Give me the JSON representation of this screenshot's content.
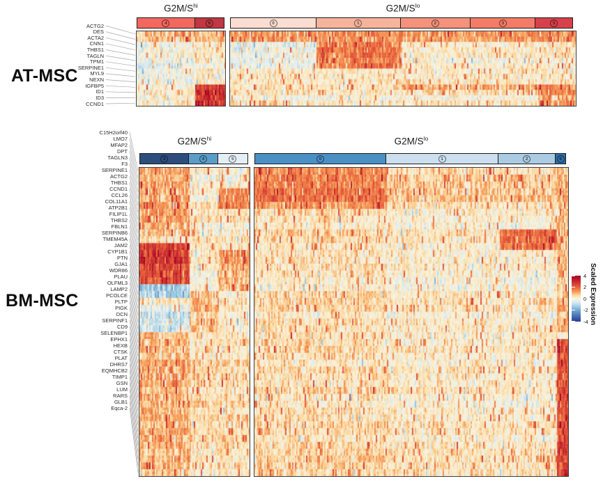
{
  "chart_data": {
    "type": "heatmap",
    "description": "Single-cell scaled expression heatmaps of equine AT-MSC and BM-MSC split by cell-cycle cluster groups",
    "legend": {
      "title": "Scaled Expression",
      "ticks": [
        "4",
        "2",
        "0",
        "-2",
        "-4"
      ],
      "range": [
        -4,
        4
      ]
    },
    "colormap": {
      "stops": [
        {
          "v": 4.0,
          "color": "#a50026"
        },
        {
          "v": 3.0,
          "color": "#c62a2e"
        },
        {
          "v": 2.0,
          "color": "#e8603c"
        },
        {
          "v": 1.2,
          "color": "#f59b58"
        },
        {
          "v": 0.6,
          "color": "#fbd9a2"
        },
        {
          "v": 0.0,
          "color": "#faf3dc"
        },
        {
          "v": -0.6,
          "color": "#dcebf0"
        },
        {
          "v": -1.2,
          "color": "#aed4e6"
        },
        {
          "v": -2.0,
          "color": "#74a9d0"
        },
        {
          "v": -3.0,
          "color": "#4575b4"
        },
        {
          "v": -4.0,
          "color": "#313695"
        }
      ]
    },
    "heatmaps": [
      {
        "name": "AT-MSC",
        "column_groups": [
          {
            "label": "G2M/S",
            "sup": "hi",
            "clusters": [
              {
                "id": "4",
                "color": "#f3685f",
                "width_frac": 0.66
              },
              {
                "id": "6",
                "color": "#c03843",
                "width_frac": 0.34
              }
            ]
          },
          {
            "label": "G2M/S",
            "sup": "lo",
            "clusters": [
              {
                "id": "0",
                "color": "#fbddd1",
                "width_frac": 0.25
              },
              {
                "id": "1",
                "color": "#f7b49d",
                "width_frac": 0.245
              },
              {
                "id": "2",
                "color": "#f5927b",
                "width_frac": 0.205
              },
              {
                "id": "3",
                "color": "#f37c68",
                "width_frac": 0.19
              },
              {
                "id": "5",
                "color": "#d6414b",
                "width_frac": 0.11
              }
            ]
          }
        ],
        "genes": [
          "ACTG2",
          "DES",
          "ACTA2",
          "CNN1",
          "THBS1",
          "TAGLN",
          "TPM1",
          "SERPINE1",
          "MYL9",
          "NEXN",
          "IGFBP5",
          "ID1",
          "ID3",
          "CCND1"
        ],
        "expression_blocks": [
          {
            "group": "lo",
            "clusters": [
              "0",
              "1",
              "2",
              "3",
              "5"
            ],
            "gene_start": "ACTG2",
            "gene_end": "DES",
            "level": 1.0
          },
          {
            "group": "hi",
            "clusters": [
              "4",
              "6"
            ],
            "gene_start": "ACTG2",
            "gene_end": "DES",
            "level": 0.7
          },
          {
            "group": "lo",
            "clusters": [
              "1"
            ],
            "gene_start": "ACTA2",
            "gene_end": "TPM1",
            "level": 1.4
          },
          {
            "group": "lo",
            "clusters": [
              "0"
            ],
            "gene_start": "ACTA2",
            "gene_end": "TPM1",
            "level": -0.5
          },
          {
            "group": "hi",
            "clusters": [
              "4"
            ],
            "gene_start": "ACTA2",
            "gene_end": "NEXN",
            "level": -0.4
          },
          {
            "group": "hi",
            "clusters": [
              "6"
            ],
            "gene_start": "IGFBP5",
            "gene_end": "CCND1",
            "level": 2.5
          },
          {
            "group": "lo",
            "clusters": [
              "5"
            ],
            "gene_start": "IGFBP5",
            "gene_end": "CCND1",
            "level": 1.1
          },
          {
            "group": "lo",
            "clusters": [
              "2",
              "3"
            ],
            "gene_start": "IGFBP5",
            "gene_end": "IGFBP5",
            "level": 0.6
          }
        ]
      },
      {
        "name": "BM-MSC",
        "column_groups": [
          {
            "label": "G2M/S",
            "sup": "hi",
            "clusters": [
              {
                "id": "3",
                "color": "#2d4d7d",
                "width_frac": 0.45
              },
              {
                "id": "4",
                "color": "#5b9dc9",
                "width_frac": 0.27
              },
              {
                "id": "5",
                "color": "#e4eef5",
                "width_frac": 0.28
              }
            ]
          },
          {
            "label": "G2M/S",
            "sup": "lo",
            "clusters": [
              {
                "id": "0",
                "color": "#4a90c5",
                "width_frac": 0.42
              },
              {
                "id": "1",
                "color": "#ccdfee",
                "width_frac": 0.36
              },
              {
                "id": "2",
                "color": "#abcbe2",
                "width_frac": 0.185
              },
              {
                "id": "6",
                "color": "#2f6ea6",
                "width_frac": 0.035
              }
            ]
          }
        ],
        "genes": [
          "C15H2orf40",
          "LMO7",
          "MFAP2",
          "DPT",
          "TAGLN3",
          "F3",
          "SERPINE1",
          "ACTG2",
          "THBS1",
          "CCND1",
          "CCL26",
          "COL11A1",
          "ATP2B1",
          "FILIP1L",
          "THBS2",
          "FBLN1",
          "SERPINB6",
          "TMEM45A",
          "JAM2",
          "CYP1B1",
          "PTN",
          "GJA1",
          "WDR86",
          "PLAU",
          "OLFML3",
          "LAMP2",
          "PCOLCE",
          "PLTP",
          "PIGK",
          "DCN",
          "SERPINF1",
          "CD9",
          "SELENBP1",
          "EPHX1",
          "HEXB",
          "CTSK",
          "PLAT",
          "DHRS7",
          "EQMHCB2",
          "TIMP1",
          "GSN",
          "LUM",
          "RARS",
          "GLB1",
          "Eqca-2"
        ],
        "expression_blocks": [
          {
            "group": "lo",
            "clusters": [
              "0"
            ],
            "gene_start": "C15H2orf40",
            "gene_end": "F3",
            "level": 1.3
          },
          {
            "group": "lo",
            "clusters": [
              "1",
              "2"
            ],
            "gene_start": "C15H2orf40",
            "gene_end": "F3",
            "level": 0.4
          },
          {
            "group": "hi",
            "clusters": [
              "3"
            ],
            "gene_start": "C15H2orf40",
            "gene_end": "CCND1",
            "level": 0.9
          },
          {
            "group": "hi",
            "clusters": [
              "5"
            ],
            "gene_start": "DPT",
            "gene_end": "F3",
            "level": 1.3
          },
          {
            "group": "hi",
            "clusters": [
              "3"
            ],
            "gene_start": "COL11A1",
            "gene_end": "SERPINB6",
            "level": 2.3
          },
          {
            "group": "hi",
            "clusters": [
              "5"
            ],
            "gene_start": "ATP2B1",
            "gene_end": "TMEM45A",
            "level": 1.0
          },
          {
            "group": "hi",
            "clusters": [
              "3"
            ],
            "gene_start": "TMEM45A",
            "gene_end": "JAM2",
            "level": -1.3
          },
          {
            "group": "hi",
            "clusters": [
              "3"
            ],
            "gene_start": "PTN",
            "gene_end": "PLAU",
            "level": -0.8
          },
          {
            "group": "hi",
            "clusters": [
              "4"
            ],
            "gene_start": "JAM2",
            "gene_end": "PLAU",
            "level": 0.7
          },
          {
            "group": "lo",
            "clusters": [
              "2"
            ],
            "gene_start": "CCND1",
            "gene_end": "COL11A1",
            "level": 1.6
          },
          {
            "group": "hi",
            "clusters": [
              "3"
            ],
            "gene_start": "OLFML3",
            "gene_end": "Eqca-2",
            "level": 0.8
          },
          {
            "group": "hi",
            "clusters": [
              "4",
              "5"
            ],
            "gene_start": "OLFML3",
            "gene_end": "Eqca-2",
            "level": 0.3
          },
          {
            "group": "lo",
            "clusters": [
              "6"
            ],
            "gene_start": "LAMP2",
            "gene_end": "Eqca-2",
            "level": 2.1
          },
          {
            "group": "lo",
            "clusters": [
              "6"
            ],
            "gene_start": "C15H2orf40",
            "gene_end": "PLAU",
            "level": 0.7
          },
          {
            "group": "lo",
            "clusters": [
              "0"
            ],
            "gene_start": "SERPINE1",
            "gene_end": "Eqca-2",
            "level": 0.25
          }
        ]
      }
    ]
  }
}
